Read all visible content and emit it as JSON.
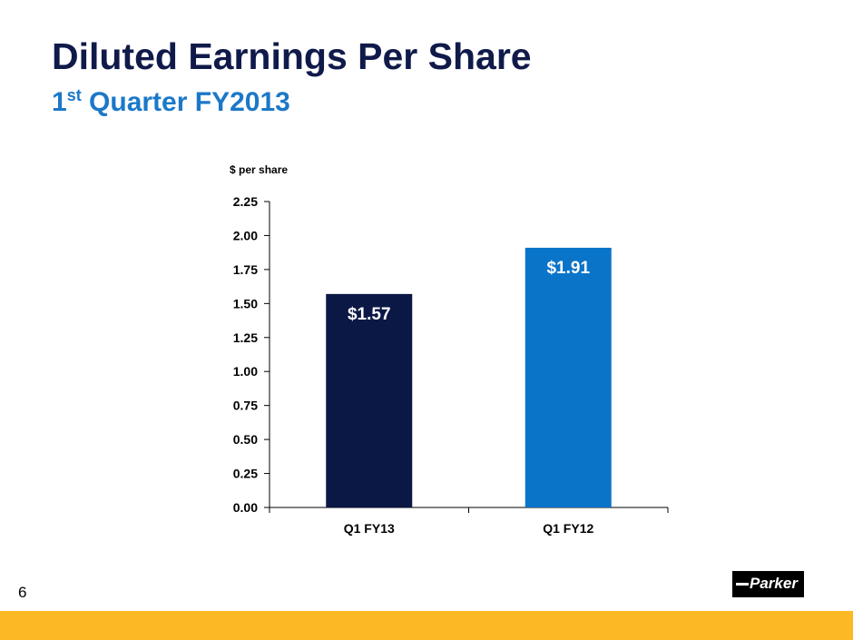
{
  "slide": {
    "title": "Diluted Earnings Per Share",
    "subtitle_num": "1",
    "subtitle_sup": "st",
    "subtitle_rest": " Quarter FY2013",
    "page_number": "6",
    "logo_text": "Parker"
  },
  "colors": {
    "title": "#101a4a",
    "subtitle": "#1b78c8",
    "bar_fy13": "#0b1845",
    "bar_fy12": "#0a74c9",
    "footer": "#fdb924"
  },
  "chart_data": {
    "type": "bar",
    "title": "",
    "ylabel": "$ per share",
    "xlabel": "",
    "categories": [
      "Q1 FY13",
      "Q1 FY12"
    ],
    "values": [
      1.57,
      1.91
    ],
    "data_labels": [
      "$1.57",
      "$1.91"
    ],
    "bar_colors": [
      "#0b1845",
      "#0a74c9"
    ],
    "ylim": [
      0,
      2.25
    ],
    "yticks": [
      "0.00",
      "0.25",
      "0.50",
      "0.75",
      "1.00",
      "1.25",
      "1.50",
      "1.75",
      "2.00",
      "2.25"
    ],
    "ytick_values": [
      0,
      0.25,
      0.5,
      0.75,
      1.0,
      1.25,
      1.5,
      1.75,
      2.0,
      2.25
    ],
    "grid": false,
    "legend": "none"
  }
}
